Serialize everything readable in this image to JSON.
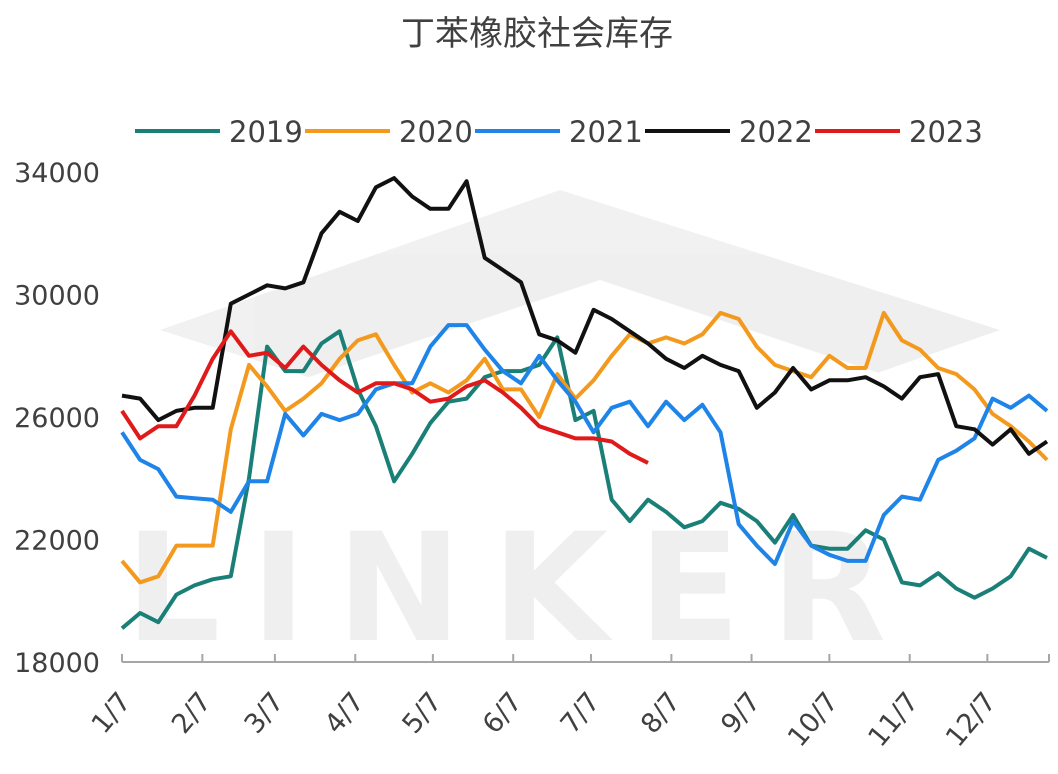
{
  "chart_data": {
    "type": "line",
    "title": "丁苯橡胶社会库存",
    "watermark": "LINKER",
    "xlabel": "",
    "ylabel": "",
    "ylim": [
      18000,
      34000
    ],
    "yticks": [
      18000,
      22000,
      26000,
      30000,
      34000
    ],
    "x_unit": "week index (0 = 1/7)",
    "xlim": [
      0,
      51
    ],
    "xticks": [
      {
        "label": "1/7",
        "week": 0
      },
      {
        "label": "2/7",
        "week": 4.43
      },
      {
        "label": "3/7",
        "week": 8.43
      },
      {
        "label": "4/7",
        "week": 12.86
      },
      {
        "label": "5/7",
        "week": 17.14
      },
      {
        "label": "6/7",
        "week": 21.57
      },
      {
        "label": "7/7",
        "week": 25.86
      },
      {
        "label": "8/7",
        "week": 30.29
      },
      {
        "label": "9/7",
        "week": 34.71
      },
      {
        "label": "10/7",
        "week": 39
      },
      {
        "label": "11/7",
        "week": 43.43
      },
      {
        "label": "12/7",
        "week": 47.71
      }
    ],
    "legend_position": "top",
    "grid": false,
    "series": [
      {
        "name": "2019",
        "color": "#1a7f76",
        "values": [
          19100,
          19600,
          19300,
          20200,
          20500,
          20700,
          20800,
          24000,
          28300,
          27500,
          27500,
          28400,
          28800,
          26900,
          25700,
          23900,
          24800,
          25800,
          26500,
          26600,
          27300,
          27500,
          27500,
          27700,
          28600,
          25900,
          26200,
          23300,
          22600,
          23300,
          22900,
          22400,
          22600,
          23200,
          23000,
          22600,
          21900,
          22800,
          21800,
          21700,
          21700,
          22300,
          22000,
          20600,
          20500,
          20900,
          20400,
          20100,
          20400,
          20800,
          21700,
          21400
        ]
      },
      {
        "name": "2020",
        "color": "#f39a1e",
        "values": [
          21300,
          20600,
          20800,
          21800,
          21800,
          21800,
          25600,
          27700,
          27000,
          26200,
          26600,
          27100,
          27900,
          28500,
          28700,
          27700,
          26800,
          27100,
          26800,
          27200,
          27900,
          26900,
          26900,
          26000,
          27400,
          26600,
          27200,
          28000,
          28700,
          28400,
          28600,
          28400,
          28700,
          29400,
          29200,
          28300,
          27700,
          27500,
          27300,
          28000,
          27600,
          27600,
          29400,
          28500,
          28200,
          27600,
          27400,
          26900,
          26100,
          25700,
          25200,
          24600
        ]
      },
      {
        "name": "2021",
        "color": "#1e84e8",
        "values": [
          25500,
          24600,
          24300,
          23400,
          23350,
          23300,
          22900,
          23900,
          23900,
          26100,
          25400,
          26100,
          25900,
          26100,
          26900,
          27100,
          27100,
          28300,
          29000,
          29000,
          28200,
          27500,
          27100,
          28000,
          27200,
          26500,
          25500,
          26300,
          26500,
          25700,
          26500,
          25900,
          26400,
          25500,
          22500,
          21800,
          21200,
          22600,
          21800,
          21500,
          21300,
          21300,
          22800,
          23400,
          23300,
          24600,
          24900,
          25300,
          26600,
          26300,
          26700,
          26200
        ]
      },
      {
        "name": "2022",
        "color": "#111111",
        "values": [
          26700,
          26600,
          25900,
          26200,
          26300,
          26300,
          29700,
          30000,
          30300,
          30200,
          30400,
          32000,
          32700,
          32400,
          33500,
          33800,
          33200,
          32800,
          32800,
          33700,
          31200,
          30800,
          30400,
          28700,
          28500,
          28100,
          29500,
          29200,
          28800,
          28400,
          27900,
          27600,
          28000,
          27700,
          27500,
          26300,
          26800,
          27600,
          26900,
          27200,
          27200,
          27300,
          27000,
          26600,
          27300,
          27400,
          25700,
          25600,
          25100,
          25600,
          24800,
          25200
        ]
      },
      {
        "name": "2023",
        "color": "#e0191b",
        "values": [
          26200,
          25300,
          25700,
          25700,
          26700,
          27900,
          28800,
          28000,
          28100,
          27600,
          28300,
          27700,
          27200,
          26800,
          27100,
          27100,
          26900,
          26500,
          26600,
          27000,
          27200,
          26800,
          26300,
          25700,
          25500,
          25300,
          25300,
          25200,
          24800,
          24500
        ]
      }
    ]
  }
}
